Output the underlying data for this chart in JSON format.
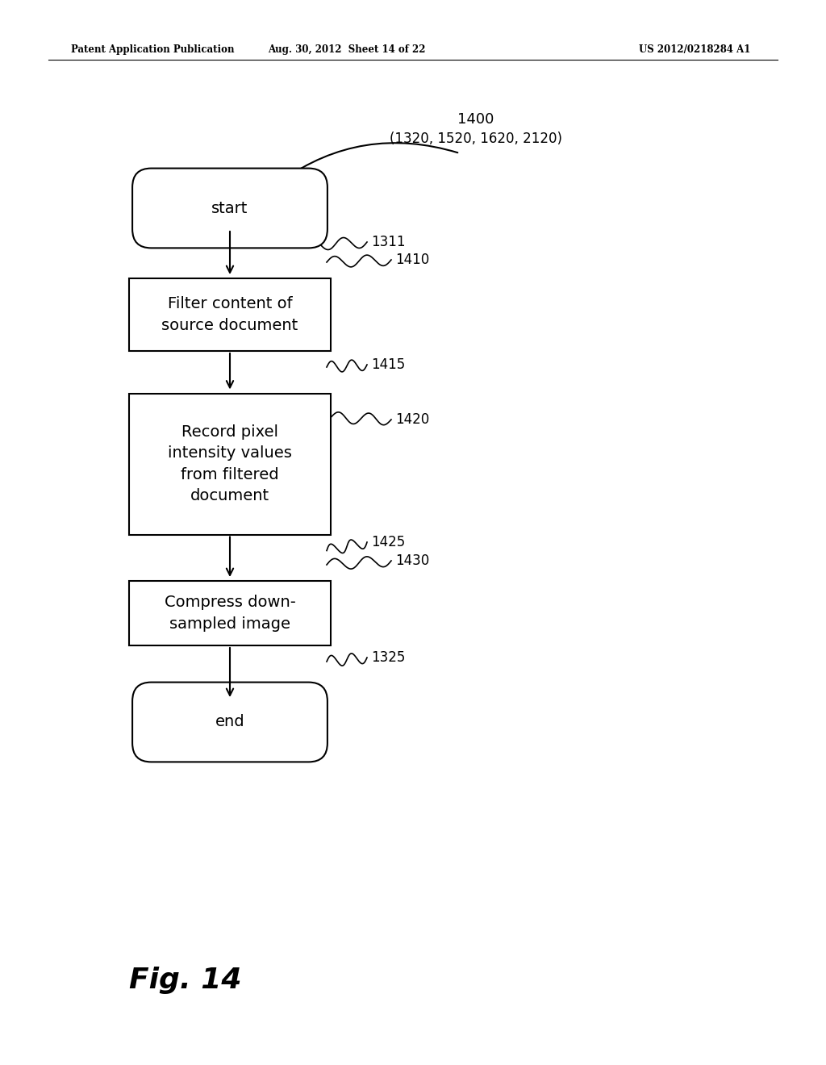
{
  "bg_color": "#ffffff",
  "header_left": "Patent Application Publication",
  "header_mid": "Aug. 30, 2012  Sheet 14 of 22",
  "header_right": "US 2012/0218284 A1",
  "fig_label": "Fig. 14",
  "ref_top_label": "1400",
  "ref_top_sublabel": "(1320, 1520, 1620, 2120)",
  "start_label": "start",
  "end_label": "end",
  "box1_label": "Filter content of\nsource document",
  "box2_label": "Record pixel\nintensity values\nfrom filtered\ndocument",
  "box3_label": "Compress down-\nsampled image",
  "ref_labels": [
    "1311",
    "1410",
    "1415",
    "1420",
    "1425",
    "1430",
    "1325"
  ]
}
